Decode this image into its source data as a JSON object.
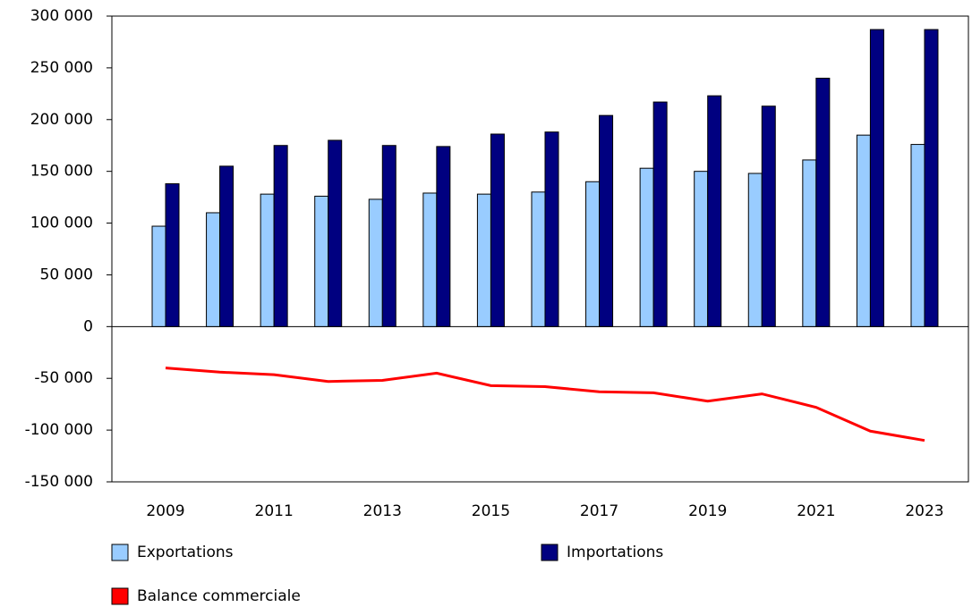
{
  "chart_data": {
    "type": "bar",
    "categories": [
      "2009",
      null,
      "2011",
      null,
      "2013",
      null,
      "2015",
      null,
      "2017",
      null,
      "2019",
      null,
      "2021",
      null,
      "2023"
    ],
    "series": [
      {
        "name": "Exportations",
        "type": "bar",
        "color": "#99ccff",
        "values": [
          97000,
          110000,
          128000,
          126000,
          123000,
          129000,
          128000,
          130000,
          140000,
          153000,
          150000,
          148000,
          161000,
          185000,
          176000
        ]
      },
      {
        "name": "Importations",
        "type": "bar",
        "color": "#000080",
        "values": [
          138000,
          155000,
          175000,
          180000,
          175000,
          174000,
          186000,
          188000,
          204000,
          217000,
          223000,
          213000,
          240000,
          287000,
          287000
        ]
      },
      {
        "name": "Balance commerciale",
        "type": "line",
        "color": "#ff0000",
        "values": [
          -40000,
          -44000,
          -46500,
          -53000,
          -52000,
          -45000,
          -57000,
          -58000,
          -63000,
          -64000,
          -72000,
          -65000,
          -78000,
          -101000,
          -110000
        ]
      }
    ],
    "ylim": [
      -150000,
      300000
    ],
    "yticks": [
      {
        "value": -150000,
        "label": "-150 000"
      },
      {
        "value": -100000,
        "label": "-100 000"
      },
      {
        "value": -50000,
        "label": "-50 000"
      },
      0,
      {
        "value": 50000,
        "label": "50 000"
      },
      {
        "value": 100000,
        "label": "100 000"
      },
      {
        "value": 150000,
        "label": "150 000"
      },
      {
        "value": 200000,
        "label": "200 000"
      },
      {
        "value": 250000,
        "label": "250 000"
      },
      {
        "value": 300000,
        "label": "300 000"
      }
    ],
    "grid": false
  }
}
